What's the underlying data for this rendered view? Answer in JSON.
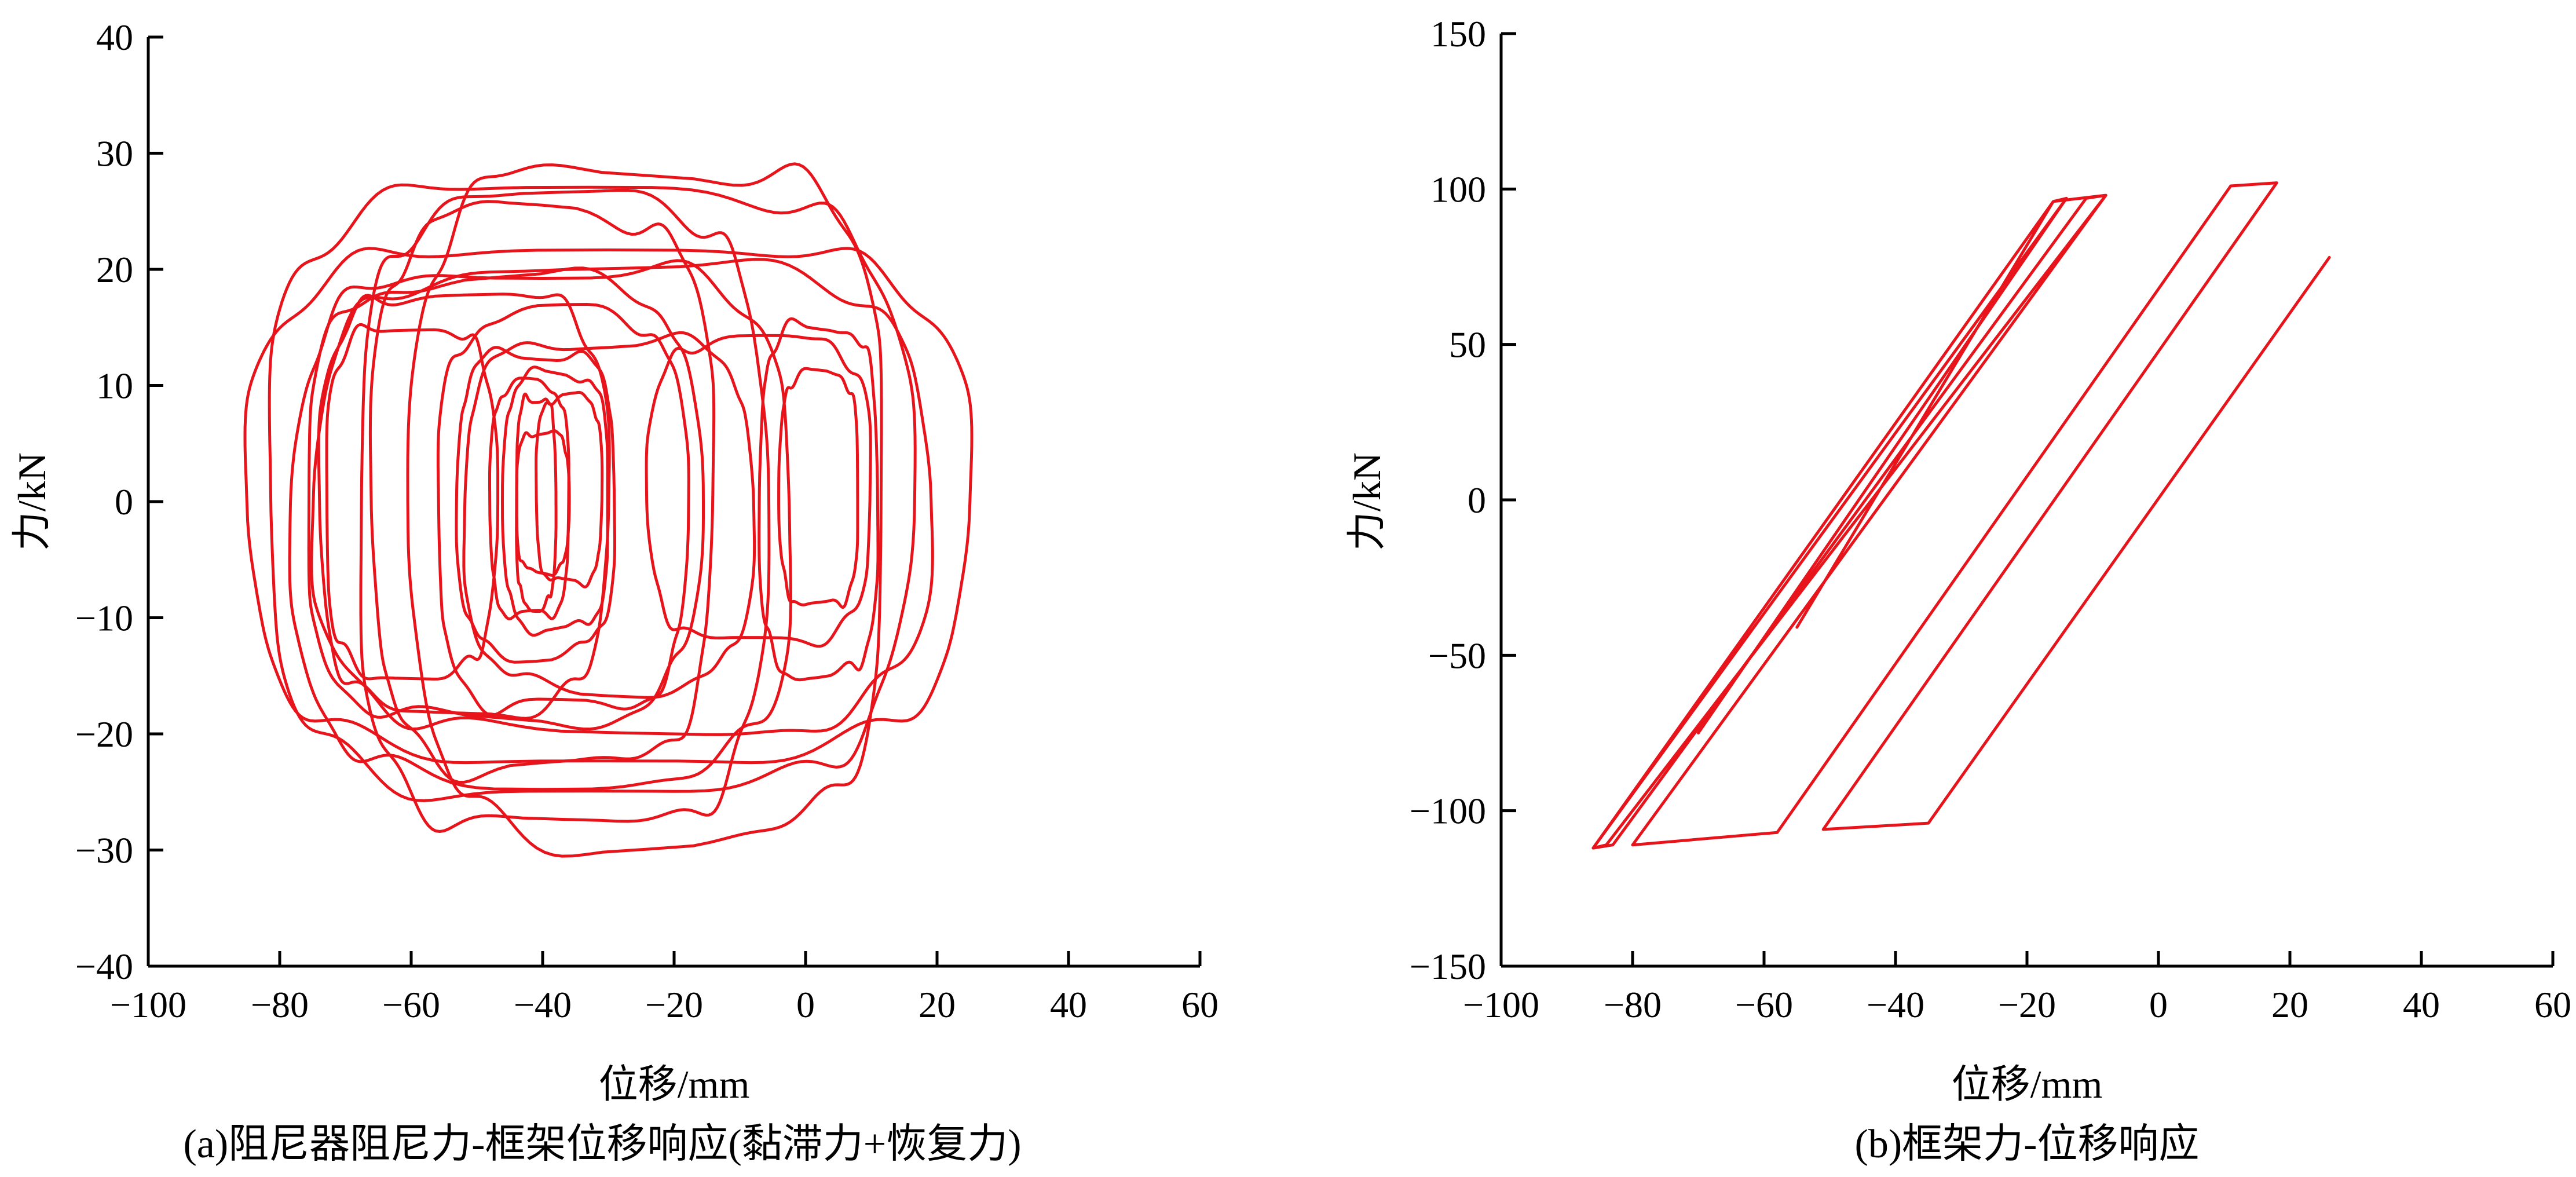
{
  "chart_data": [
    {
      "type": "line",
      "caption": "(a)阻尼器阻尼力-框架位移响应(黏滞力+恢复力)",
      "xlabel": "位移/mm",
      "ylabel": "力/kN",
      "xlim": [
        -100,
        60
      ],
      "ylim": [
        -40,
        40
      ],
      "xticks": [
        "−100",
        "−80",
        "−60",
        "−40",
        "−20",
        "0",
        "20",
        "40",
        "60"
      ],
      "yticks": [
        "−40",
        "−30",
        "−20",
        "−10",
        "0",
        "10",
        "20",
        "30",
        "40"
      ],
      "grid": false,
      "color": "#e8141b",
      "loops": [
        {
          "cx": -30,
          "cy": 0,
          "rx": 55,
          "ry": 22
        },
        {
          "cx": -33,
          "cy": 1,
          "rx": 49,
          "ry": 26
        },
        {
          "cx": -37,
          "cy": -1,
          "rx": 31,
          "ry": 27
        },
        {
          "cx": -28,
          "cy": 0,
          "rx": 47,
          "ry": 20
        },
        {
          "cx": -40,
          "cy": -2,
          "rx": 38,
          "ry": 22
        },
        {
          "cx": -24,
          "cy": 0,
          "rx": 36,
          "ry": 29
        },
        {
          "cx": -40,
          "cy": 1,
          "rx": 26,
          "ry": 24
        },
        {
          "cx": -37,
          "cy": -1,
          "rx": 19,
          "ry": 17
        },
        {
          "cx": -46,
          "cy": 0,
          "rx": 30,
          "ry": 19
        },
        {
          "cx": -30,
          "cy": -1,
          "rx": 22,
          "ry": 15
        },
        {
          "cx": -41,
          "cy": 0,
          "rx": 12,
          "ry": 13
        },
        {
          "cx": -38,
          "cy": 0,
          "rx": 8,
          "ry": 11
        },
        {
          "cx": -42,
          "cy": 0,
          "rx": 6,
          "ry": 10
        },
        {
          "cx": -36,
          "cy": 1,
          "rx": 5,
          "ry": 8
        },
        {
          "cx": -40,
          "cy": 0,
          "rx": 4,
          "ry": 6
        },
        {
          "cx": -41,
          "cy": 0,
          "rx": 3,
          "ry": 9
        },
        {
          "cx": 2,
          "cy": 0,
          "rx": 9,
          "ry": 15
        },
        {
          "cx": 2,
          "cy": 1,
          "rx": 6,
          "ry": 10
        },
        {
          "cx": -7,
          "cy": 1,
          "rx": 17,
          "ry": 13
        },
        {
          "cx": -52,
          "cy": 0,
          "rx": 22,
          "ry": 18
        },
        {
          "cx": -60,
          "cy": 0,
          "rx": 13,
          "ry": 15
        }
      ]
    },
    {
      "type": "line",
      "caption": "(b)框架力-位移响应",
      "xlabel": "位移/mm",
      "ylabel": "力/kN",
      "xlim": [
        -100,
        60
      ],
      "ylim": [
        -150,
        150
      ],
      "xticks": [
        "−100",
        "−80",
        "−60",
        "−40",
        "−20",
        "0",
        "20",
        "40",
        "60"
      ],
      "yticks": [
        "−150",
        "−100",
        "−50",
        "0",
        "50",
        "100",
        "150"
      ],
      "grid": false,
      "color": "#e8141b",
      "path": [
        [
          -55,
          -41
        ],
        [
          -16,
          96
        ],
        [
          -8,
          98
        ],
        [
          -84,
          -111
        ],
        [
          -86,
          -112
        ],
        [
          -16,
          96
        ],
        [
          -14,
          97
        ],
        [
          -86,
          -112
        ],
        [
          -83,
          -111
        ],
        [
          -11,
          97
        ],
        [
          -8,
          98
        ],
        [
          -80,
          -111
        ],
        [
          -58,
          -107
        ],
        [
          11,
          101
        ],
        [
          18,
          102
        ],
        [
          -51,
          -106
        ],
        [
          -35,
          -104
        ],
        [
          26,
          78
        ]
      ],
      "extra_path": [
        [
          -70,
          -75
        ],
        [
          -14,
          97
        ]
      ]
    }
  ]
}
